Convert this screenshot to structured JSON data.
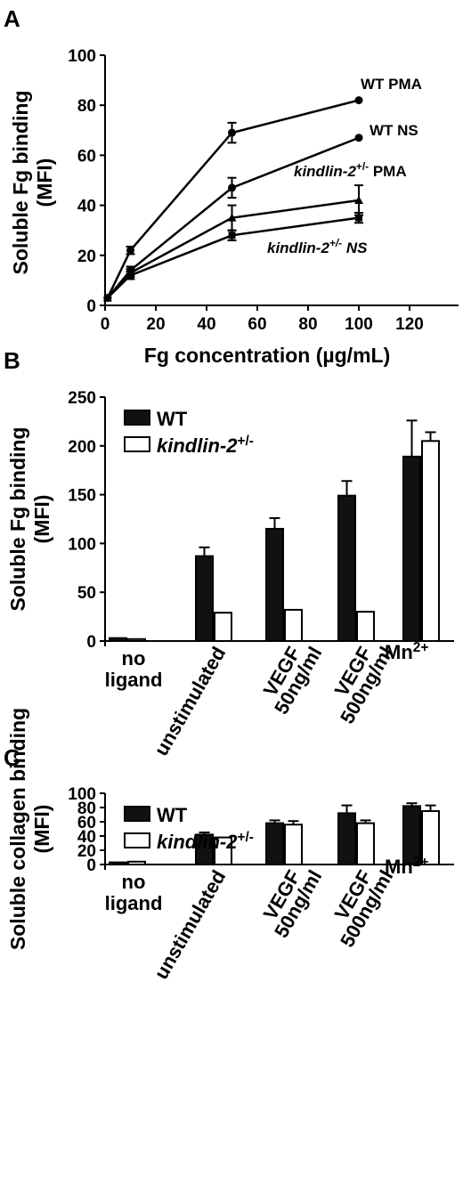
{
  "chart_data": [
    {
      "panel": "A",
      "type": "line",
      "xlabel": "Fg concentration (µg/mL)",
      "ylabel": [
        "Soluble Fg binding",
        "(MFI)"
      ],
      "xlim": [
        0,
        120
      ],
      "ylim": [
        0,
        100
      ],
      "xticks": [
        "0",
        "20",
        "40",
        "60",
        "80",
        "100",
        "120"
      ],
      "yticks": [
        "0",
        "20",
        "40",
        "60",
        "80",
        "100"
      ],
      "x": [
        1,
        10,
        50,
        100
      ],
      "series": [
        {
          "name": "WT PMA",
          "name_parts": [
            "WT PMA"
          ],
          "values": [
            3,
            22,
            69,
            82
          ],
          "errors": [
            0,
            1.5,
            4,
            0
          ],
          "marker": "circle"
        },
        {
          "name": "WT NS",
          "name_parts": [
            "WT NS"
          ],
          "values": [
            3,
            14,
            47,
            67
          ],
          "errors": [
            0,
            1.5,
            4,
            0
          ],
          "marker": "circle"
        },
        {
          "name": "kindlin-2+/- PMA",
          "name_parts": [
            "kindlin-2",
            "+/-",
            " PMA"
          ],
          "values": [
            3,
            13,
            35,
            42
          ],
          "errors": [
            0,
            1.5,
            5,
            6
          ],
          "marker": "triangle"
        },
        {
          "name": "kindlin-2+/- NS",
          "name_parts": [
            "kindlin-2",
            "+/-",
            " NS"
          ],
          "values": [
            3,
            12,
            28,
            35
          ],
          "errors": [
            0,
            1.5,
            2,
            2
          ],
          "marker": "square"
        }
      ]
    },
    {
      "panel": "B",
      "type": "bar",
      "ylabel": [
        "Soluble Fg binding",
        "(MFI)"
      ],
      "ylim": [
        0,
        250
      ],
      "yticks": [
        "0",
        "50",
        "100",
        "150",
        "200",
        "250"
      ],
      "categories": [
        [
          "no",
          "ligand"
        ],
        [
          "unstimulated"
        ],
        [
          "VEGF",
          "50ng/ml"
        ],
        [
          "VEGF",
          "500ng/ml"
        ],
        [
          "Mn",
          "2+"
        ]
      ],
      "legend": [
        {
          "name_parts": [
            "WT"
          ],
          "color": "#111111"
        },
        {
          "name_parts": [
            "kindlin-2",
            "+/-"
          ],
          "color": "#ffffff"
        }
      ],
      "series": [
        {
          "name": "WT",
          "values": [
            3,
            87,
            115,
            149,
            189
          ],
          "errors": [
            0,
            9,
            11,
            15,
            37
          ]
        },
        {
          "name": "kindlin-2+/-",
          "values": [
            2,
            29,
            32,
            30,
            205
          ],
          "errors": [
            0,
            0,
            0,
            0,
            9
          ]
        }
      ]
    },
    {
      "panel": "C",
      "type": "bar",
      "ylabel": [
        "Soluble collagen binding",
        "(MFI)"
      ],
      "ylim": [
        0,
        100
      ],
      "yticks": [
        "0",
        "20",
        "40",
        "60",
        "80",
        "100"
      ],
      "categories": [
        [
          "no",
          "ligand"
        ],
        [
          "unstimulated"
        ],
        [
          "VEGF",
          "50ng/ml"
        ],
        [
          "VEGF",
          "500ng/ml"
        ],
        [
          "Mn",
          "2+"
        ]
      ],
      "legend": [
        {
          "name_parts": [
            "WT"
          ],
          "color": "#111111"
        },
        {
          "name_parts": [
            "kindlin-2",
            "+/-"
          ],
          "color": "#ffffff"
        }
      ],
      "series": [
        {
          "name": "WT",
          "values": [
            3,
            42,
            58,
            72,
            82
          ],
          "errors": [
            0,
            3,
            4,
            11,
            4
          ]
        },
        {
          "name": "kindlin-2+/-",
          "values": [
            4,
            38,
            56,
            58,
            75
          ],
          "errors": [
            0,
            0,
            5,
            4,
            8
          ]
        }
      ]
    }
  ],
  "panels": {
    "a": "A",
    "b": "B",
    "c": "C"
  }
}
